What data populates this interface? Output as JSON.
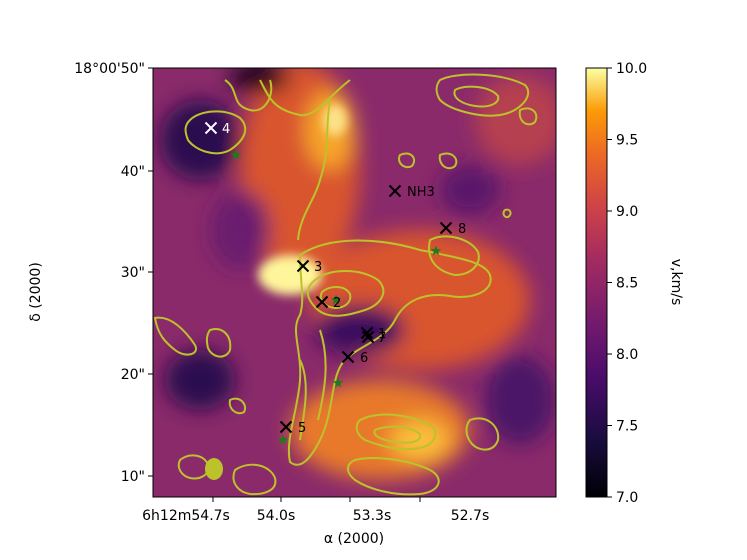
{
  "chart_data": {
    "type": "heatmap",
    "xlabel": "α (2000)",
    "ylabel": "δ (2000)",
    "x_ticks": [
      "6h12m54.7s",
      "54.0s",
      "53.3s",
      "52.7s"
    ],
    "y_ticks": [
      "18°00'50\"",
      "40\"",
      "30\"",
      "20\"",
      "10\""
    ],
    "colorbar": {
      "label": "v,km/s",
      "range": [
        7.0,
        10.0
      ],
      "ticks": [
        "7.0",
        "7.5",
        "8.0",
        "8.5",
        "9.0",
        "9.5",
        "10.0"
      ],
      "colormap": "inferno"
    },
    "markers": [
      {
        "label": "4",
        "color": "#ffffff"
      },
      {
        "label": "NH3",
        "color": "#000000"
      },
      {
        "label": "8",
        "color": "#000000"
      },
      {
        "label": "3",
        "color": "#000000"
      },
      {
        "label": "2",
        "color": "#000000"
      },
      {
        "label": "1",
        "color": "#000000"
      },
      {
        "label": "7",
        "color": "#000000"
      },
      {
        "label": "6",
        "color": "#000000"
      },
      {
        "label": "5",
        "color": "#000000"
      }
    ],
    "contour_color": "#bcc32a",
    "star_color": "#1e7a1e"
  }
}
